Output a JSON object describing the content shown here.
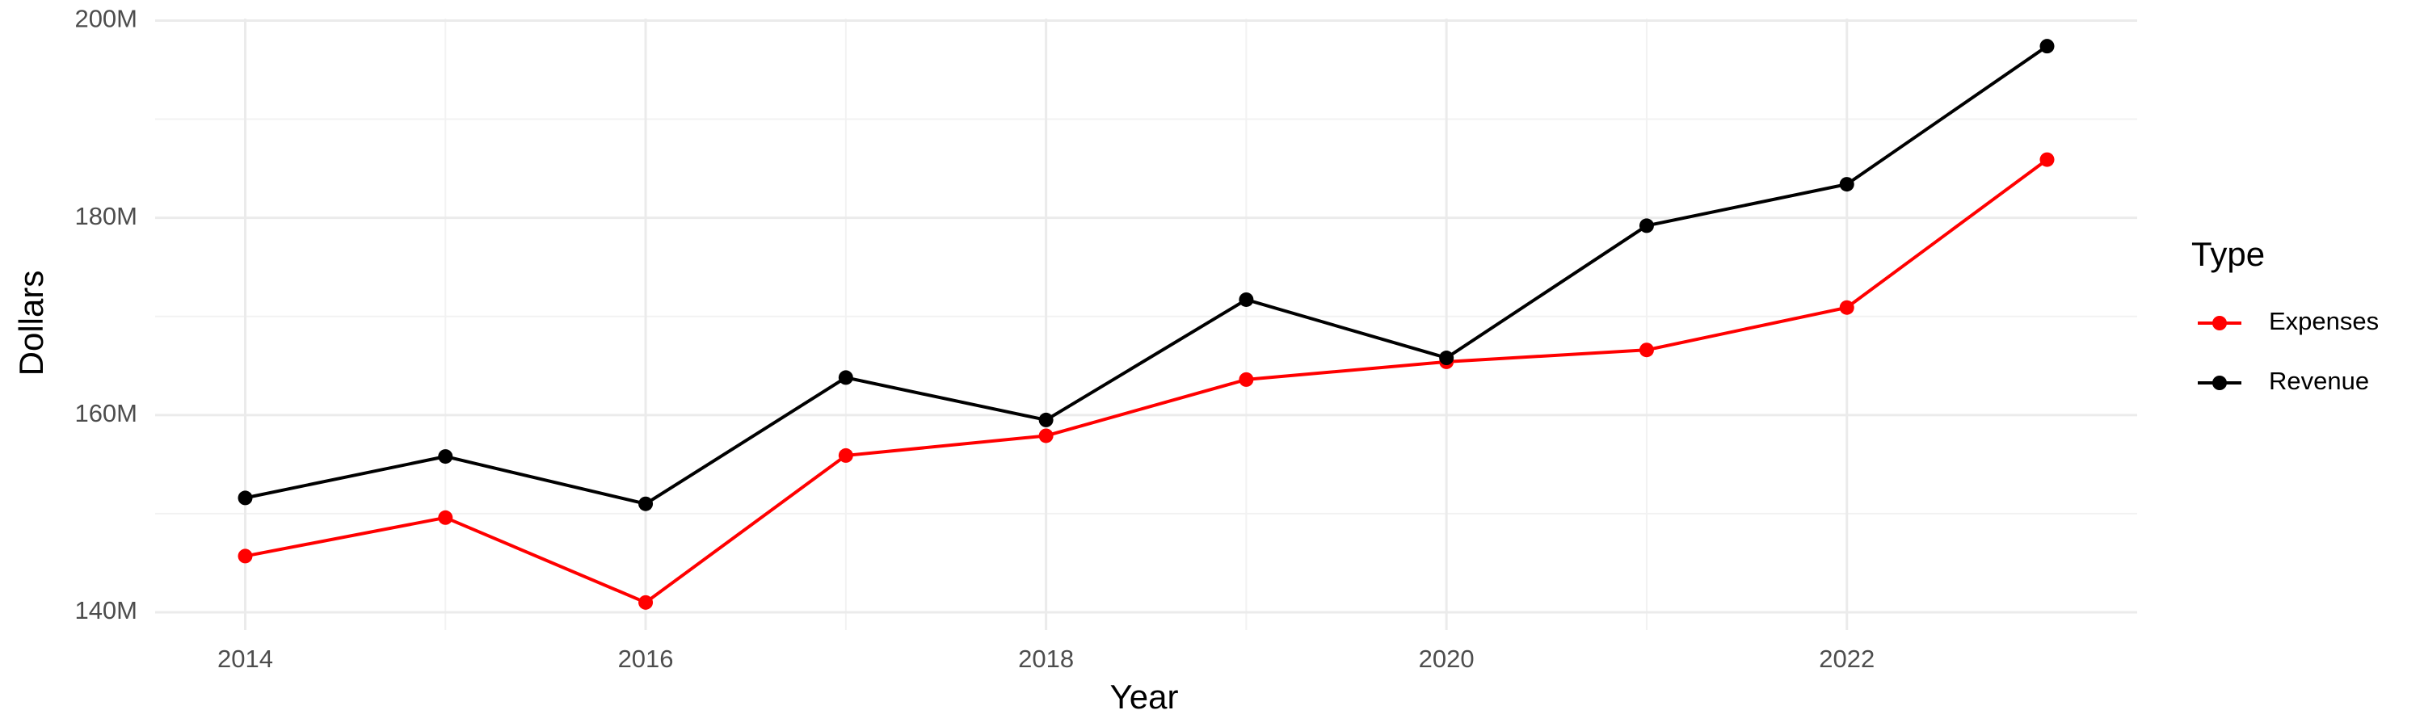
{
  "chart_data": {
    "type": "line",
    "x_label": "Year",
    "y_label": "Dollars",
    "legend_title": "Type",
    "x": [
      2014,
      2015,
      2016,
      2017,
      2018,
      2019,
      2020,
      2021,
      2022,
      2023
    ],
    "series": [
      {
        "name": "Expenses",
        "color": "#ff0000",
        "values": [
          145700000,
          149600000,
          141000000,
          155900000,
          157900000,
          163600000,
          165400000,
          166600000,
          170900000,
          185900000
        ]
      },
      {
        "name": "Revenue",
        "color": "#000000",
        "values": [
          151600000,
          155800000,
          151000000,
          163800000,
          159500000,
          171700000,
          165800000,
          179200000,
          183400000,
          197400000
        ]
      }
    ],
    "xlim": [
      2013.55,
      2023.45
    ],
    "xticks": [
      2014,
      2016,
      2018,
      2020,
      2022
    ],
    "ylim": [
      138200000,
      200200000
    ],
    "yticks": [
      {
        "value": 140000000,
        "label": "140M"
      },
      {
        "value": 160000000,
        "label": "160M"
      },
      {
        "value": 180000000,
        "label": "180M"
      },
      {
        "value": 200000000,
        "label": "200M"
      }
    ],
    "grid": true,
    "minor_grid": true,
    "legend": "right"
  }
}
